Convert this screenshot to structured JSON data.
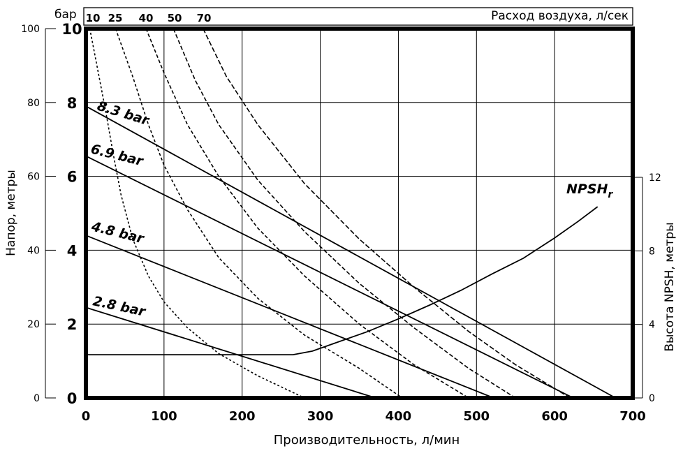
{
  "chart_data": {
    "type": "line",
    "x_axis": {
      "label": "Производительность, л/мин",
      "range": [
        0,
        700
      ],
      "ticks": [
        0,
        100,
        200,
        300,
        400,
        500,
        600,
        700
      ]
    },
    "y_axis_head_bar": {
      "label": "",
      "range": [
        0,
        10
      ],
      "ticks": [
        0,
        2,
        4,
        6,
        8,
        10
      ]
    },
    "y_axis_head_m": {
      "label": "Напор, метры",
      "range": [
        0,
        100
      ],
      "ticks": [
        0,
        20,
        40,
        60,
        80,
        100
      ]
    },
    "y_axis_npsh": {
      "label": "Высота NPSH, метры",
      "range": [
        0,
        12
      ],
      "ticks": [
        0,
        4,
        8,
        12
      ]
    },
    "air_axis": {
      "unit_label": "бар",
      "title": "Расход воздуха, л/сек",
      "values": [
        "10",
        "25",
        "40",
        "50",
        "70"
      ]
    },
    "grid": true,
    "series": [
      {
        "name": "8.3 bar",
        "style": "solid",
        "x": [
          0,
          678
        ],
        "y": [
          7.9,
          0
        ]
      },
      {
        "name": "6.9 bar",
        "style": "solid",
        "x": [
          0,
          624
        ],
        "y": [
          6.55,
          0
        ]
      },
      {
        "name": "4.8 bar",
        "style": "solid",
        "x": [
          0,
          522
        ],
        "y": [
          4.4,
          0
        ]
      },
      {
        "name": "2.8 bar",
        "style": "solid",
        "x": [
          0,
          371
        ],
        "y": [
          2.45,
          0
        ]
      },
      {
        "name": "NPSHr",
        "style": "solid",
        "axis": "npsh",
        "x": [
          0,
          265,
          290,
          320,
          360,
          400,
          440,
          480,
          520,
          560,
          600,
          630,
          655
        ],
        "y": [
          2.35,
          2.35,
          2.55,
          3.0,
          3.6,
          4.3,
          5.05,
          5.85,
          6.75,
          7.6,
          8.7,
          9.6,
          10.4
        ]
      },
      {
        "air_flow": "10",
        "style": "dashed",
        "x": [
          5,
          15,
          25,
          35,
          45,
          60,
          80,
          100,
          130,
          170,
          220,
          280
        ],
        "y": [
          10,
          8.9,
          7.8,
          6.6,
          5.5,
          4.3,
          3.3,
          2.6,
          1.9,
          1.2,
          0.6,
          0
        ]
      },
      {
        "air_flow": "25",
        "style": "dashed",
        "x": [
          38,
          60,
          80,
          100,
          130,
          170,
          220,
          280,
          350,
          405
        ],
        "y": [
          10,
          8.7,
          7.4,
          6.3,
          5.1,
          3.8,
          2.7,
          1.7,
          0.8,
          0
        ]
      },
      {
        "air_flow": "40",
        "style": "dashed",
        "x": [
          77,
          100,
          130,
          170,
          220,
          280,
          350,
          420,
          490
        ],
        "y": [
          10,
          8.8,
          7.4,
          6.0,
          4.6,
          3.3,
          2.0,
          0.9,
          0
        ]
      },
      {
        "air_flow": "50",
        "style": "dashed",
        "x": [
          112,
          140,
          170,
          220,
          280,
          350,
          420,
          490,
          550
        ],
        "y": [
          10,
          8.6,
          7.4,
          5.9,
          4.5,
          3.1,
          1.9,
          0.8,
          0
        ]
      },
      {
        "air_flow": "70",
        "style": "dashed",
        "x": [
          150,
          180,
          220,
          280,
          350,
          420,
          490,
          550,
          620
        ],
        "y": [
          10,
          8.7,
          7.4,
          5.8,
          4.3,
          3.0,
          1.8,
          0.9,
          0
        ]
      }
    ]
  }
}
